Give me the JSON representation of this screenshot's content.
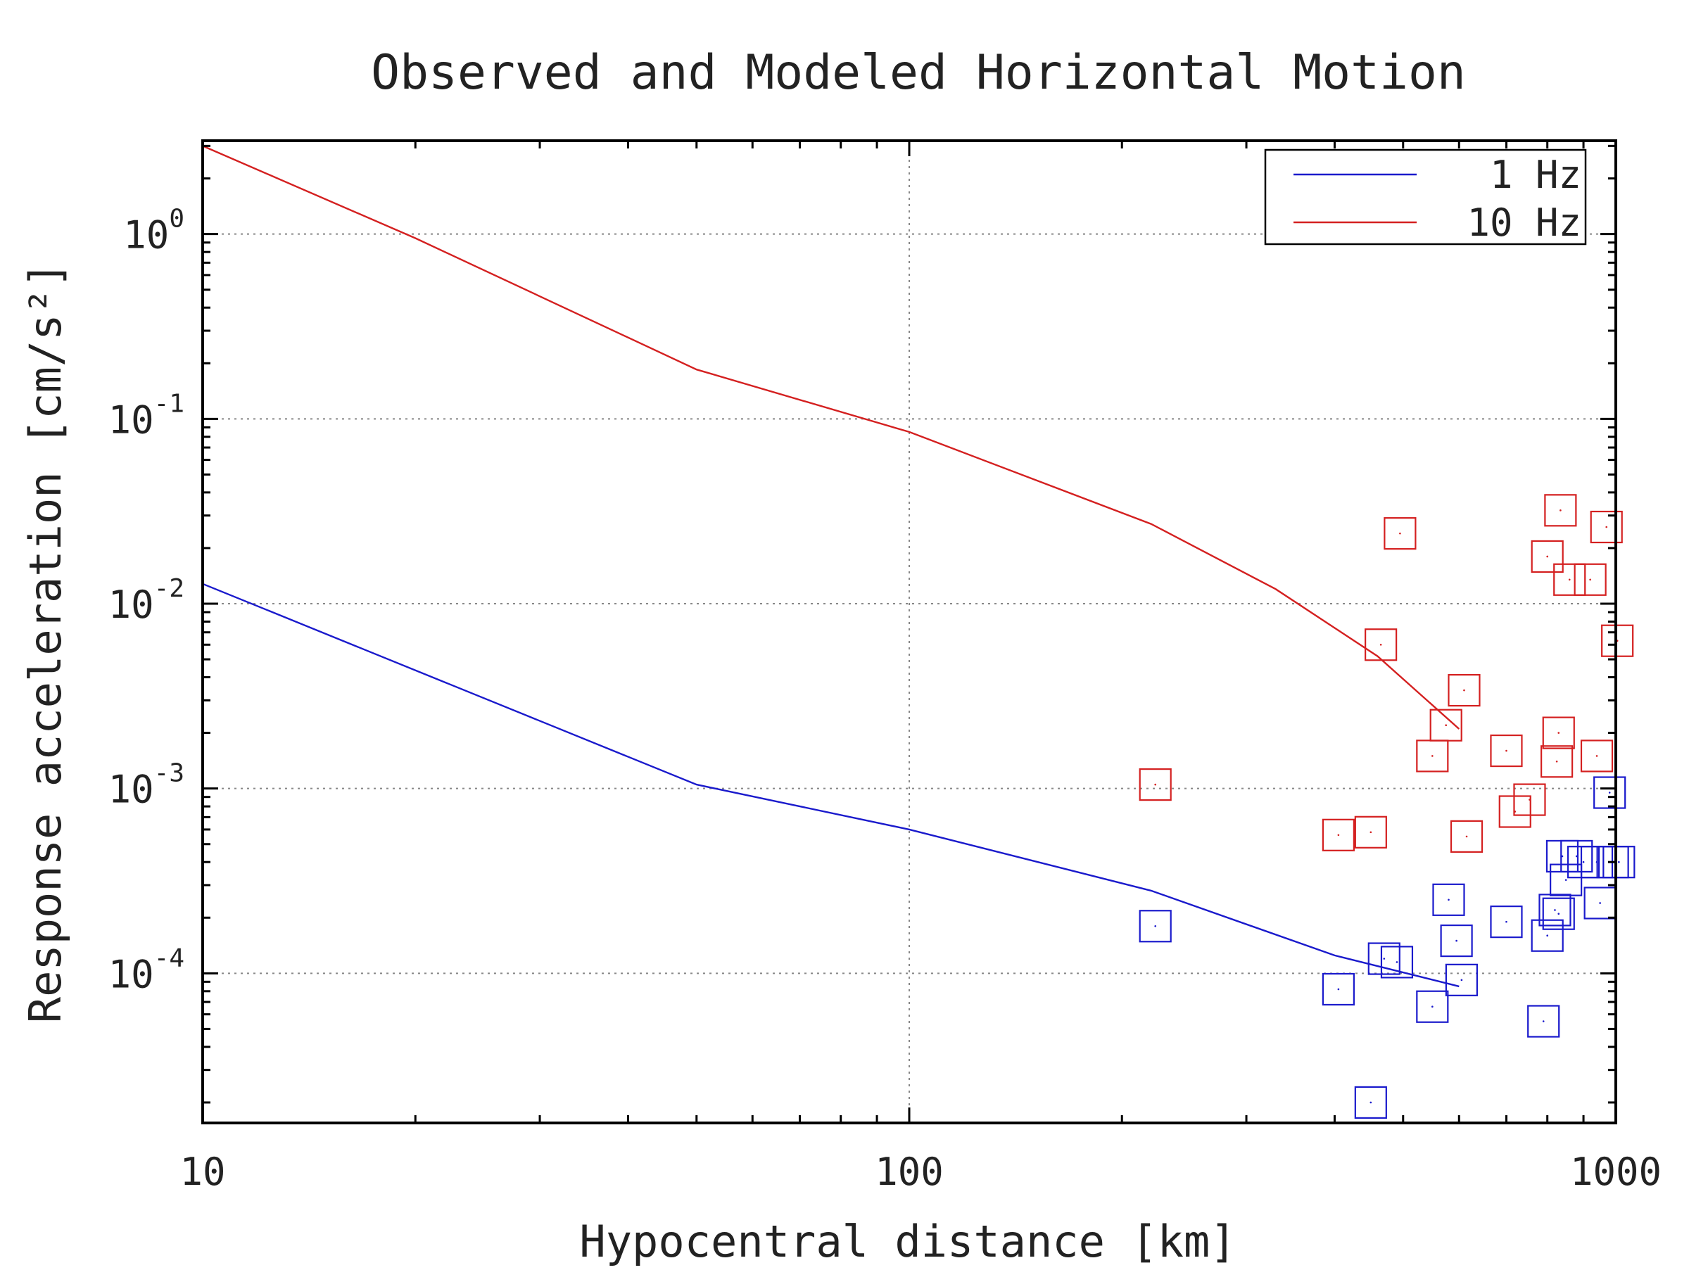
{
  "chart_data": {
    "type": "scatter",
    "title": "Observed and Modeled Horizontal Motion",
    "xlabel": "Hypocentral distance [km]",
    "ylabel": "Response acceleration [cm/s²]",
    "xscale": "log",
    "yscale": "log",
    "xlim": [
      10,
      1000
    ],
    "ylim": [
      1.55e-05,
      3.2
    ],
    "x_ticks": [
      {
        "value": 10,
        "label": "10"
      },
      {
        "value": 100,
        "label": "100"
      },
      {
        "value": 1000,
        "label": "1000"
      }
    ],
    "y_ticks": [
      {
        "value": 1,
        "base": "10",
        "exp": "0"
      },
      {
        "value": 0.1,
        "base": "10",
        "exp": "-1"
      },
      {
        "value": 0.01,
        "base": "10",
        "exp": "-2"
      },
      {
        "value": 0.001,
        "base": "10",
        "exp": "-3"
      },
      {
        "value": 0.0001,
        "base": "10",
        "exp": "-4"
      }
    ],
    "grid": true,
    "legend_position": "top-right",
    "series": [
      {
        "name": "1 Hz",
        "kind": "line",
        "color": "#1a1acc",
        "x": [
          10,
          50,
          100,
          220,
          400,
          600
        ],
        "y": [
          0.0128,
          0.00105,
          0.0006,
          0.00028,
          0.000125,
          8.5e-05
        ]
      },
      {
        "name": "10 Hz",
        "kind": "line",
        "color": "#d42020",
        "x": [
          10,
          20,
          50,
          100,
          220,
          330,
          460,
          600
        ],
        "y": [
          3.0,
          0.95,
          0.185,
          0.085,
          0.027,
          0.012,
          0.0052,
          0.0021
        ]
      },
      {
        "kind": "markers",
        "color": "#1a1acc",
        "x": [
          223,
          405,
          450,
          470,
          490,
          550,
          580,
          595,
          605,
          700,
          790,
          800,
          820,
          830,
          840,
          850,
          880,
          900,
          940,
          950,
          980,
          990,
          1010
        ],
        "y": [
          0.00018,
          8.2e-05,
          2e-05,
          0.00012,
          0.000115,
          6.6e-05,
          0.00025,
          0.00015,
          9.2e-05,
          0.00019,
          5.5e-05,
          0.00016,
          0.00022,
          0.00021,
          0.00043,
          0.00032,
          0.00043,
          0.0004,
          0.0004,
          0.00024,
          0.00095,
          0.0004,
          0.0004
        ]
      },
      {
        "kind": "markers",
        "color": "#d42020",
        "x": [
          223,
          405,
          450,
          465,
          495,
          550,
          575,
          610,
          615,
          700,
          720,
          755,
          800,
          825,
          830,
          835,
          860,
          920,
          940,
          970,
          1005
        ],
        "y": [
          0.00105,
          0.00056,
          0.00058,
          0.006,
          0.024,
          0.0015,
          0.0022,
          0.0034,
          0.00055,
          0.0016,
          0.00075,
          0.00087,
          0.018,
          0.0014,
          0.002,
          0.032,
          0.0135,
          0.0135,
          0.0015,
          0.026,
          0.0063
        ]
      }
    ]
  }
}
